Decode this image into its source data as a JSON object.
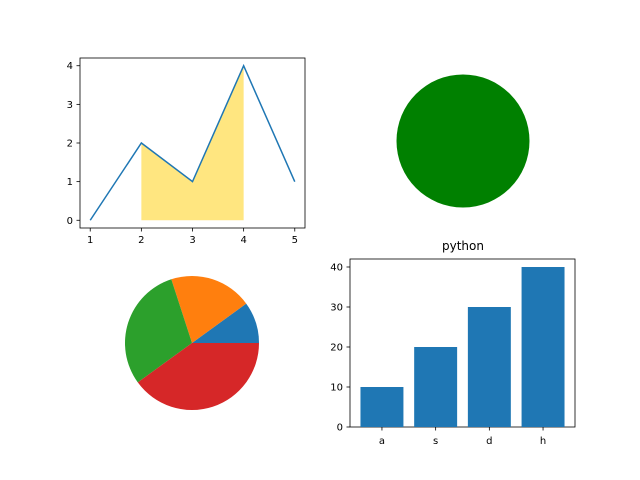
{
  "chart_data": [
    {
      "type": "line",
      "x": [
        1,
        2,
        3,
        4,
        5
      ],
      "y": [
        0,
        2,
        1,
        4,
        1
      ],
      "fill_between": {
        "x": [
          2,
          3,
          4
        ],
        "y": [
          2,
          1,
          4
        ],
        "baseline": 0
      },
      "xticks": [
        "1",
        "2",
        "3",
        "4",
        "5"
      ],
      "yticks": [
        "0",
        "1",
        "2",
        "3",
        "4"
      ],
      "xlim": [
        0.8,
        5.2
      ],
      "ylim": [
        -0.2,
        4.2
      ],
      "grid": false,
      "colors": {
        "line": "#1f77b4",
        "fill": "#ffe680"
      }
    },
    {
      "type": "scatter",
      "shape": "circle",
      "color": "#008000",
      "axes_visible": false
    },
    {
      "type": "pie",
      "values": [
        10,
        20,
        30,
        40
      ],
      "colors": [
        "#1f77b4",
        "#ff7f0e",
        "#2ca02c",
        "#d62728"
      ],
      "start_angle": 0,
      "direction": "counterclockwise"
    },
    {
      "type": "bar",
      "title": "python",
      "categories": [
        "a",
        "s",
        "d",
        "h"
      ],
      "values": [
        10,
        20,
        30,
        40
      ],
      "yticks": [
        "0",
        "10",
        "20",
        "30",
        "40"
      ],
      "ylim": [
        0,
        42
      ],
      "grid": false,
      "color": "#1f77b4"
    }
  ]
}
